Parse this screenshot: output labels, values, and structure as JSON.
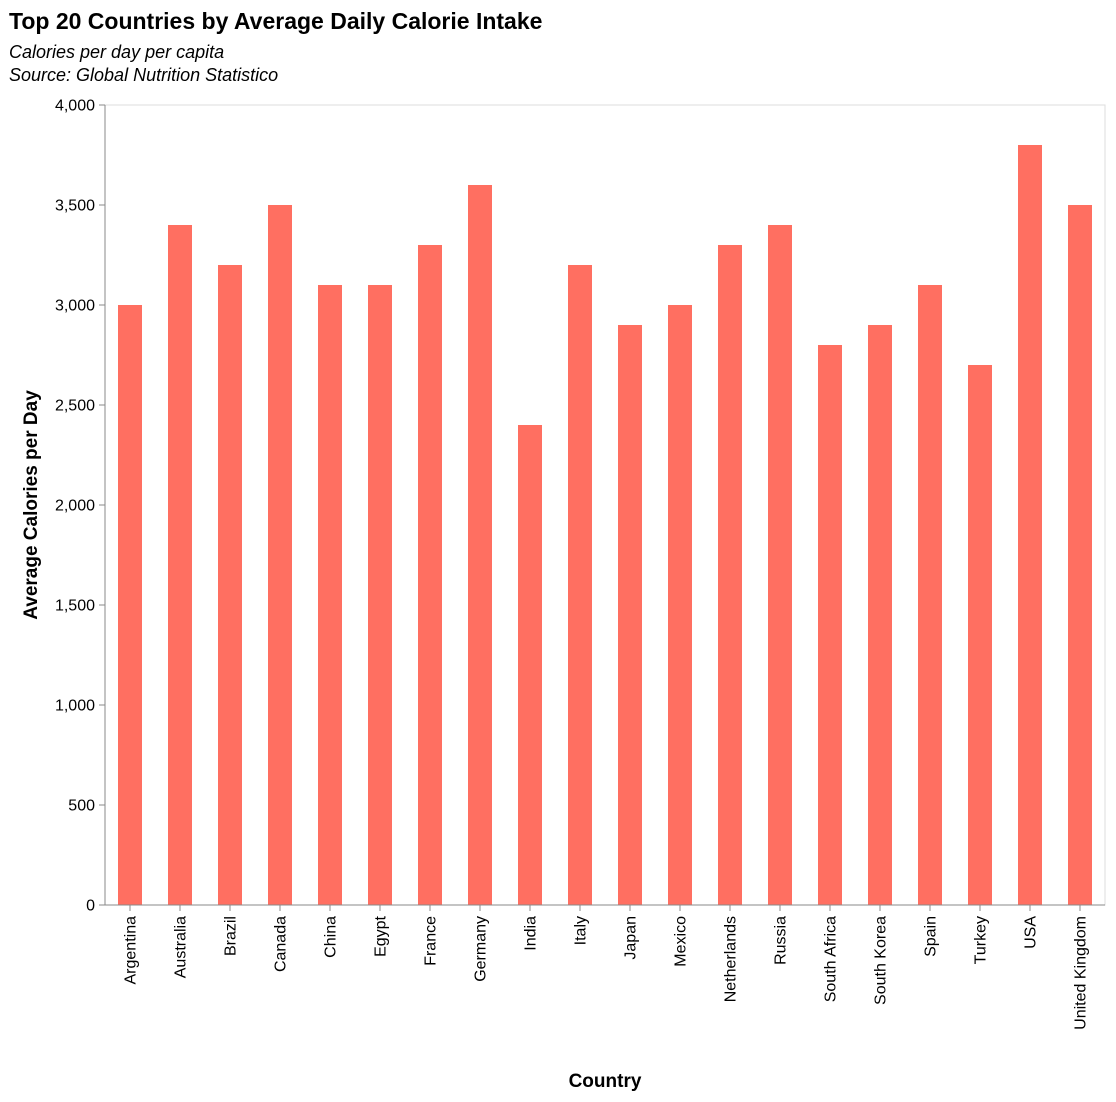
{
  "chart_data": {
    "type": "bar",
    "title": "Top 20 Countries by Average Daily Calorie Intake",
    "subtitle": [
      "Calories per day per capita",
      "Source: Global Nutrition Statistico"
    ],
    "xlabel": "Country",
    "ylabel": "Average Calories per Day",
    "categories": [
      "Argentina",
      "Australia",
      "Brazil",
      "Canada",
      "China",
      "Egypt",
      "France",
      "Germany",
      "India",
      "Italy",
      "Japan",
      "Mexico",
      "Netherlands",
      "Russia",
      "South Africa",
      "South Korea",
      "Spain",
      "Turkey",
      "USA",
      "United Kingdom"
    ],
    "values": [
      3000,
      3400,
      3200,
      3500,
      3100,
      3100,
      3300,
      3600,
      2400,
      3200,
      2900,
      3000,
      3300,
      3400,
      2800,
      2900,
      3100,
      2700,
      3800,
      3500
    ],
    "ylim": [
      0,
      4000
    ],
    "yticks": [
      0,
      500,
      1000,
      1500,
      2000,
      2500,
      3000,
      3500,
      4000
    ],
    "ytick_labels": [
      "0",
      "500",
      "1,000",
      "1,500",
      "2,000",
      "2,500",
      "3,000",
      "3,500",
      "4,000"
    ],
    "grid": false,
    "bar_color": "#ff6f61"
  }
}
